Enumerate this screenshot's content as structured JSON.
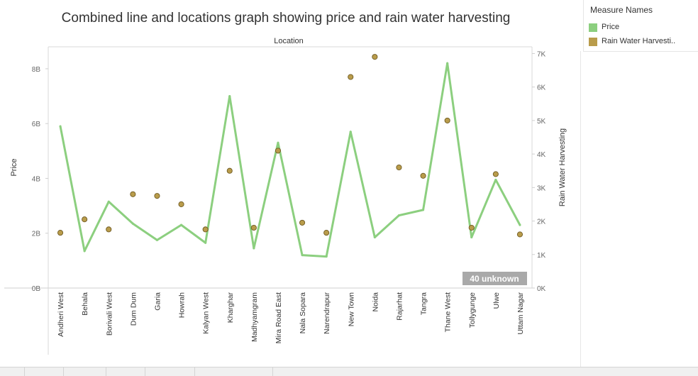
{
  "chart_data": {
    "type": "line+scatter",
    "title": "Combined line and locations graph showing price and rain water harvesting",
    "x_header": "Location",
    "ylabel_left": "Price",
    "ylabel_right": "Rain Water Harvesting",
    "categories": [
      "Andheri West",
      "Behala",
      "Borivali West",
      "Dum Dum",
      "Garia",
      "Howrah",
      "Kalyan West",
      "Kharghar",
      "Madhyamgram",
      "Mira Road East",
      "Nala Sopara",
      "Narendrapur",
      "New Town",
      "Noida",
      "Rajarhat",
      "Tangra",
      "Thane West",
      "Tollygunge",
      "Ulwe",
      "Uttam Nagar"
    ],
    "left_axis": {
      "min": 0,
      "max": 8.8,
      "ticks": [
        0,
        2,
        4,
        6,
        8
      ],
      "tick_labels": [
        "0B",
        "2B",
        "4B",
        "6B",
        "8B"
      ]
    },
    "right_axis": {
      "min": 0,
      "max": 7.2,
      "ticks": [
        0,
        1,
        2,
        3,
        4,
        5,
        6,
        7
      ],
      "tick_labels": [
        "0K",
        "1K",
        "2K",
        "3K",
        "4K",
        "5K",
        "6K",
        "7K"
      ]
    },
    "grid": false,
    "legend_position": "top-right",
    "series": [
      {
        "name": "Price",
        "kind": "line",
        "axis": "left",
        "color": "#8ccf7f",
        "values": [
          5.9,
          1.35,
          3.15,
          2.35,
          1.75,
          2.3,
          1.65,
          7.0,
          1.45,
          5.3,
          1.2,
          1.15,
          5.7,
          1.85,
          2.65,
          2.85,
          8.2,
          1.85,
          3.95,
          2.3
        ]
      },
      {
        "name": "Rain Water Harvesti..",
        "kind": "scatter",
        "axis": "right",
        "color": "#b99c4b",
        "values": [
          1.65,
          2.05,
          1.75,
          2.8,
          2.75,
          2.5,
          1.75,
          3.5,
          1.8,
          4.1,
          1.95,
          1.65,
          6.3,
          6.9,
          3.6,
          3.35,
          5.0,
          1.8,
          3.4,
          1.6
        ]
      }
    ],
    "annotation": "40 unknown"
  },
  "legend": {
    "title": "Measure Names"
  }
}
